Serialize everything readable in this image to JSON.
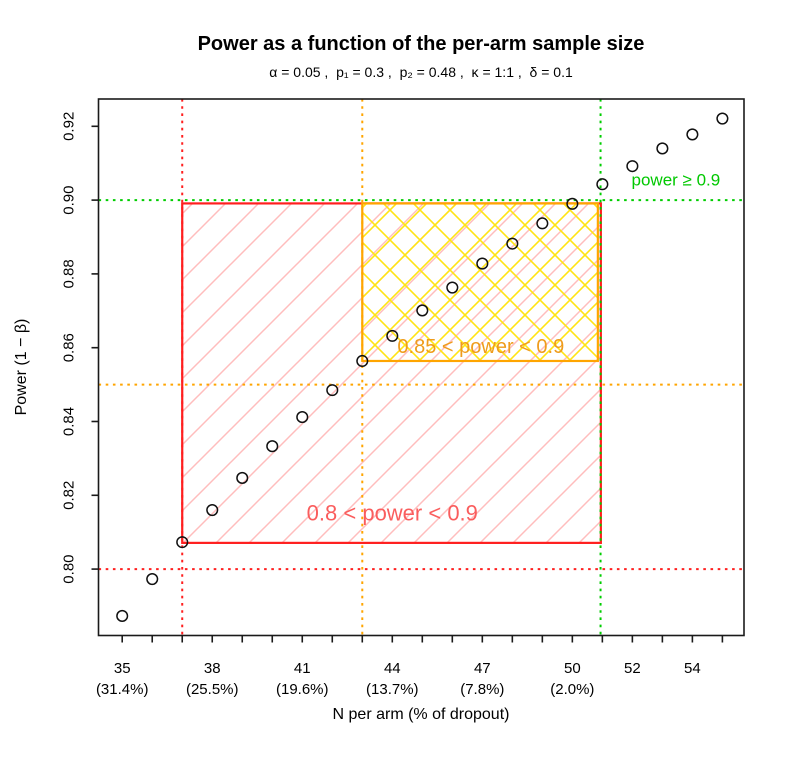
{
  "header": {
    "title": "Power as a function of the per-arm sample size",
    "subtitle": "α = 0.05 ,  p₁ = 0.3 ,  p₂ = 0.48 ,  κ = 1:1 ,  δ = 0.1"
  },
  "chart_data": {
    "type": "scatter",
    "title": "Power as a function of the per-arm sample size",
    "subtitle": "α = 0.05 ,  p₁ = 0.3 ,  p₂ = 0.48 ,  κ = 1:1 ,  δ = 0.1",
    "xlabel": "N per arm (% of dropout)",
    "ylabel": "Power (1 − β)",
    "xlim": [
      34.21,
      55.72
    ],
    "ylim": [
      0.782,
      0.9274
    ],
    "grid": false,
    "legend": "none",
    "marker": {
      "shape": "open-circle",
      "color": "#111111"
    },
    "points": {
      "x": [
        35,
        36,
        37,
        38,
        39,
        40,
        41,
        42,
        43,
        44,
        45,
        46,
        47,
        48,
        49,
        50,
        51,
        52,
        53,
        54,
        55
      ],
      "power": [
        0.7873,
        0.7973,
        0.8073,
        0.816,
        0.8247,
        0.8333,
        0.8412,
        0.8485,
        0.8564,
        0.8632,
        0.8701,
        0.8763,
        0.8828,
        0.8882,
        0.8937,
        0.899,
        0.9043,
        0.9092,
        0.914,
        0.9178,
        0.9221
      ]
    },
    "x_ticks": [
      35,
      36,
      37,
      38,
      39,
      40,
      41,
      42,
      43,
      44,
      45,
      46,
      47,
      48,
      49,
      50,
      51,
      52,
      53,
      54,
      55
    ],
    "x_tick_labels": [
      {
        "n": 35,
        "label": "35",
        "dropout": "(31.4%)"
      },
      {
        "n": 38,
        "label": "38",
        "dropout": "(25.5%)"
      },
      {
        "n": 41,
        "label": "41",
        "dropout": "(19.6%)"
      },
      {
        "n": 44,
        "label": "44",
        "dropout": "(13.7%)"
      },
      {
        "n": 47,
        "label": "47",
        "dropout": "(7.8%)"
      },
      {
        "n": 50,
        "label": "50",
        "dropout": "(2.0%)"
      },
      {
        "n": 52,
        "label": "52",
        "dropout": ""
      },
      {
        "n": 54,
        "label": "54",
        "dropout": ""
      }
    ],
    "y_ticks": [
      "0.80",
      "0.82",
      "0.84",
      "0.86",
      "0.88",
      "0.90",
      "0.92"
    ],
    "regions": [
      {
        "name": "region-power-0.8-0.9",
        "x1": 37,
        "x2": 50.95,
        "y1": 0.8071,
        "y2": 0.8991,
        "stroke": "#ff1f1f",
        "hatch": "red"
      },
      {
        "name": "region-power-0.85-0.9",
        "x1": 43,
        "x2": 50.85,
        "y1": 0.8564,
        "y2": 0.8991,
        "stroke": "#ffa500",
        "hatch": "yellow"
      }
    ],
    "ref_lines": [
      {
        "name": "ref-red",
        "color": "#ff1f1f",
        "v": 37,
        "h": 0.8
      },
      {
        "name": "ref-orange",
        "color": "#ffa500",
        "v": 43,
        "h": 0.85
      },
      {
        "name": "ref-green",
        "color": "#00cd00",
        "v": 50.94,
        "h": 0.9
      }
    ],
    "annotations": [
      {
        "name": "label-power-08-09",
        "text": "0.8 < power < 0.9",
        "x": 44.0,
        "y": 0.8152,
        "color": "#fa5d5d",
        "size": 22
      },
      {
        "name": "label-power-085-09",
        "text": "0.85 < power < 0.9",
        "x": 46.95,
        "y": 0.8602,
        "color": "#ef9c1c",
        "size": 20
      },
      {
        "name": "label-power-ge-09",
        "text": "power ≥ 0.9",
        "x": 53.45,
        "y": 0.9054,
        "color": "#00c800",
        "size": 17
      }
    ],
    "colors": {
      "hatch_red": "#ffbdbd",
      "hatch_yellow": "#ffe414",
      "axis": "#1a1a1a"
    }
  }
}
